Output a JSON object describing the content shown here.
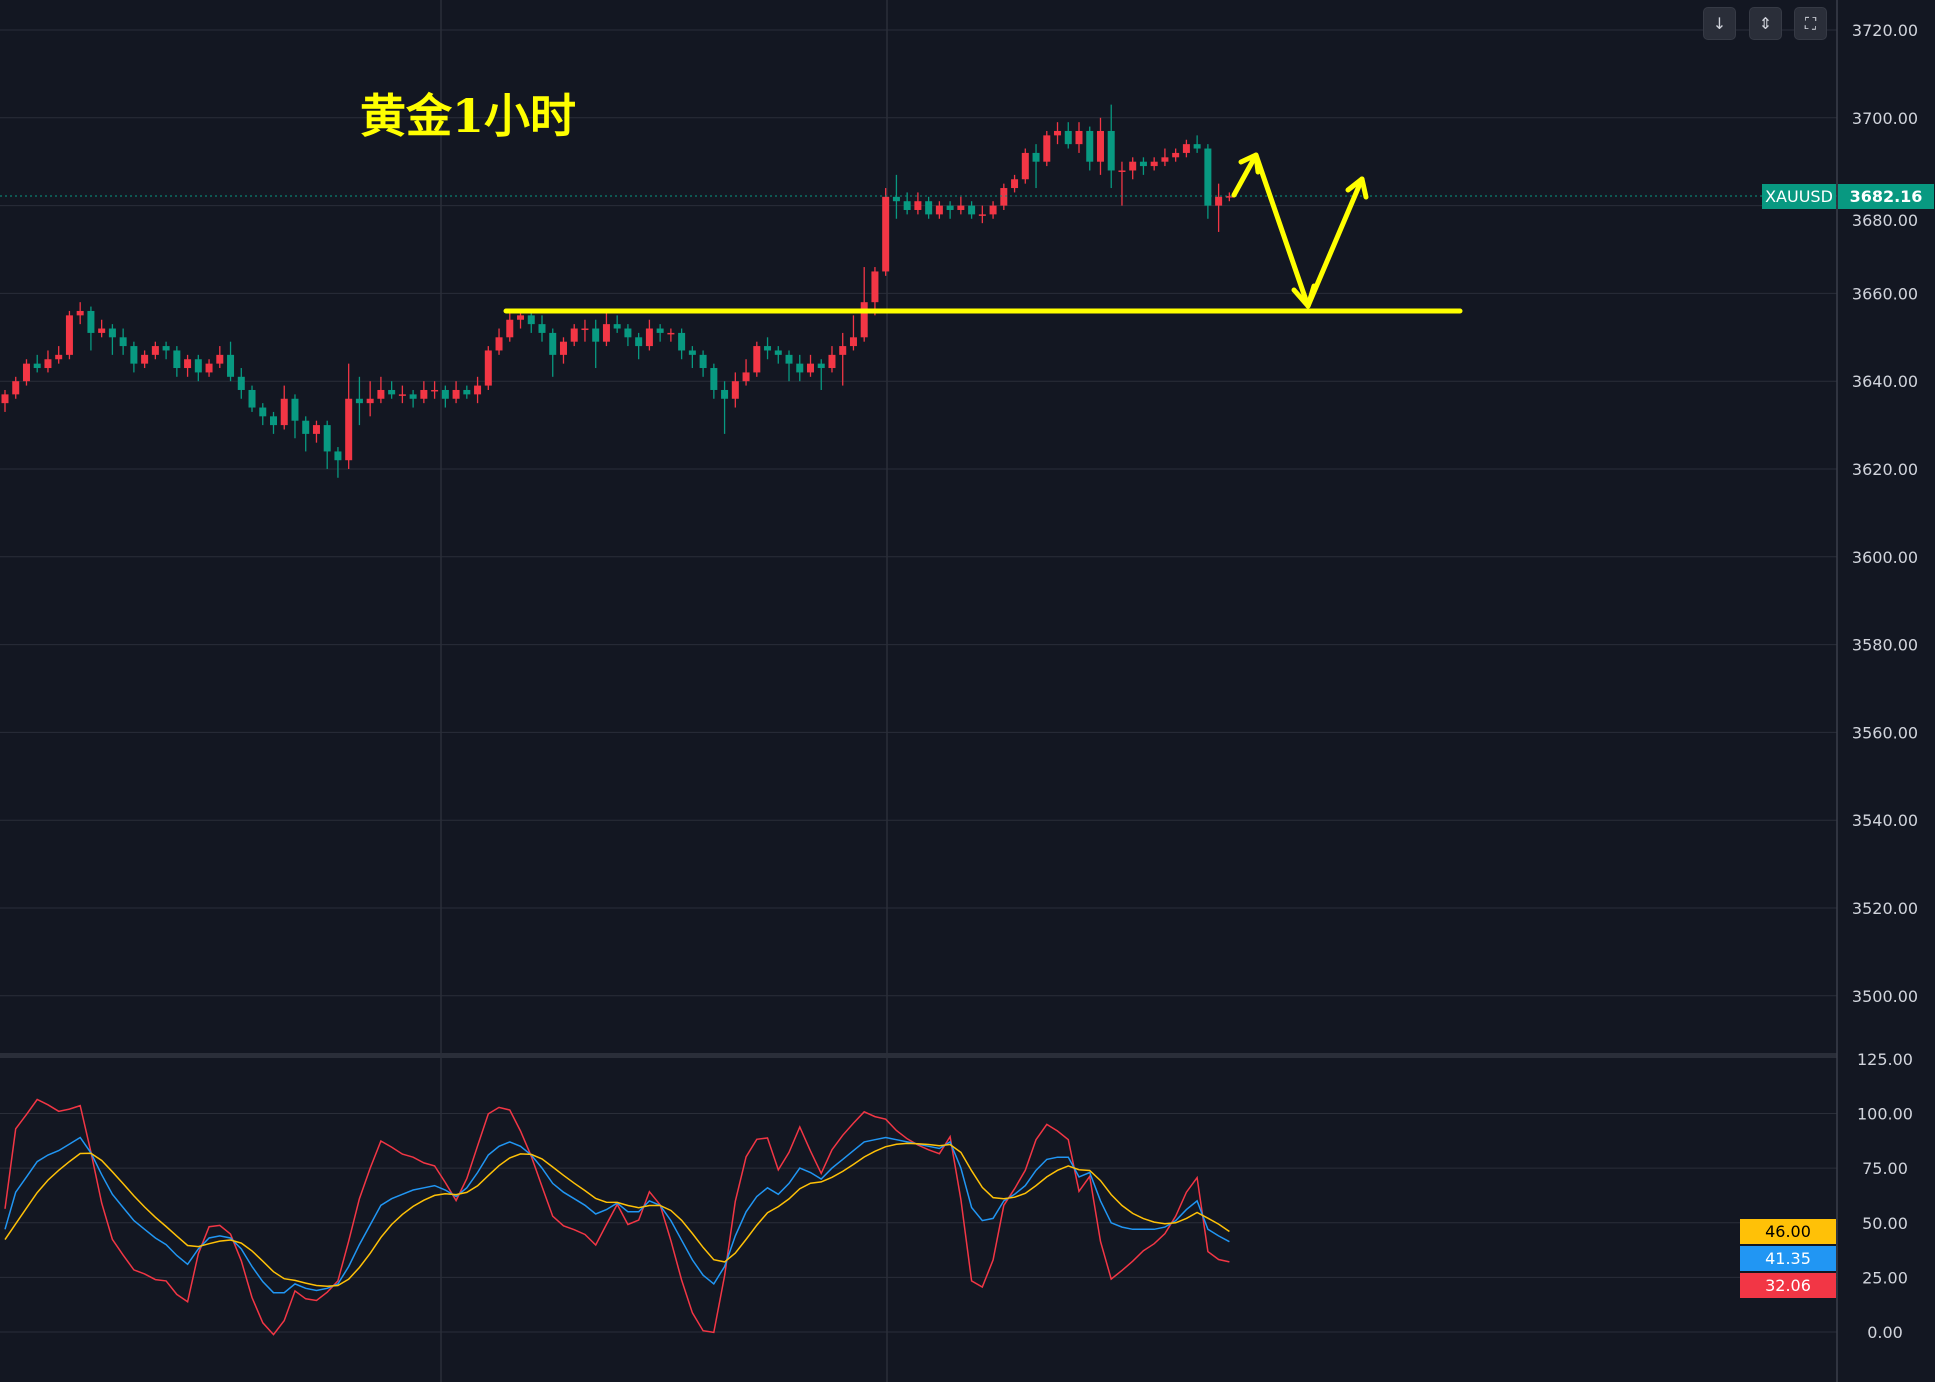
{
  "annotation": {
    "title": "黄金1小时",
    "line_color": "#ffff00",
    "support_level": 3656
  },
  "toolbar": {
    "buttons": [
      {
        "name": "scroll-to-latest",
        "icon": "arrow-down-icon",
        "glyph": "↓"
      },
      {
        "name": "collapse-panes",
        "icon": "collapse-icon",
        "glyph": "⇕"
      },
      {
        "name": "fullscreen",
        "icon": "fullscreen-icon",
        "glyph": "⛶"
      }
    ]
  },
  "symbol": {
    "name": "XAUUSD",
    "last_price": "3682.16",
    "color": "#089981"
  },
  "colors": {
    "up": "#f23645",
    "down": "#089981",
    "background": "#131722",
    "grid": "#2a2e39"
  },
  "chart_data": [
    {
      "type": "candlestick",
      "title": "",
      "ylim": [
        3495,
        3726
      ],
      "yticks": [
        "3720.00",
        "3700.00",
        "3680.00",
        "3660.00",
        "3640.00",
        "3620.00",
        "3600.00",
        "3580.00",
        "3560.00",
        "3540.00",
        "3520.00",
        "3500.00"
      ],
      "grid": true,
      "ohlc": [
        [
          3635,
          3638,
          3633,
          3637
        ],
        [
          3637,
          3641,
          3636,
          3640
        ],
        [
          3640,
          3645,
          3639,
          3644
        ],
        [
          3644,
          3646,
          3642,
          3643
        ],
        [
          3643,
          3647,
          3642,
          3645
        ],
        [
          3645,
          3648,
          3644,
          3646
        ],
        [
          3646,
          3656,
          3645,
          3655
        ],
        [
          3655,
          3658,
          3653,
          3656
        ],
        [
          3656,
          3657,
          3647,
          3651
        ],
        [
          3651,
          3654,
          3650,
          3652
        ],
        [
          3652,
          3653,
          3646,
          3650
        ],
        [
          3650,
          3652,
          3646,
          3648
        ],
        [
          3648,
          3649,
          3642,
          3644
        ],
        [
          3644,
          3647,
          3643,
          3646
        ],
        [
          3646,
          3649,
          3645,
          3648
        ],
        [
          3648,
          3649,
          3645,
          3647
        ],
        [
          3647,
          3648,
          3641,
          3643
        ],
        [
          3643,
          3646,
          3641,
          3645
        ],
        [
          3645,
          3646,
          3640,
          3642
        ],
        [
          3642,
          3645,
          3641,
          3644
        ],
        [
          3644,
          3648,
          3643,
          3646
        ],
        [
          3646,
          3649,
          3640,
          3641
        ],
        [
          3641,
          3643,
          3636,
          3638
        ],
        [
          3638,
          3639,
          3633,
          3634
        ],
        [
          3634,
          3635,
          3630,
          3632
        ],
        [
          3632,
          3633,
          3628,
          3630
        ],
        [
          3630,
          3639,
          3629,
          3636
        ],
        [
          3636,
          3637,
          3627,
          3631
        ],
        [
          3631,
          3632,
          3624,
          3628
        ],
        [
          3628,
          3631,
          3626,
          3630
        ],
        [
          3630,
          3631,
          3620,
          3624
        ],
        [
          3624,
          3625,
          3618,
          3622
        ],
        [
          3622,
          3644,
          3620,
          3636
        ],
        [
          3636,
          3641,
          3630,
          3635
        ],
        [
          3635,
          3640,
          3632,
          3636
        ],
        [
          3636,
          3641,
          3635,
          3638
        ],
        [
          3638,
          3640,
          3636,
          3637
        ],
        [
          3637,
          3639,
          3635,
          3637
        ],
        [
          3637,
          3638,
          3634,
          3636
        ],
        [
          3636,
          3640,
          3635,
          3638
        ],
        [
          3638,
          3640,
          3636,
          3638
        ],
        [
          3638,
          3639,
          3634,
          3636
        ],
        [
          3636,
          3640,
          3635,
          3638
        ],
        [
          3638,
          3639,
          3636,
          3637
        ],
        [
          3637,
          3641,
          3635,
          3639
        ],
        [
          3639,
          3648,
          3638,
          3647
        ],
        [
          3647,
          3652,
          3646,
          3650
        ],
        [
          3650,
          3656,
          3649,
          3654
        ],
        [
          3654,
          3656,
          3652,
          3655
        ],
        [
          3655,
          3656,
          3651,
          3653
        ],
        [
          3653,
          3655,
          3649,
          3651
        ],
        [
          3651,
          3652,
          3641,
          3646
        ],
        [
          3646,
          3650,
          3644,
          3649
        ],
        [
          3649,
          3653,
          3648,
          3652
        ],
        [
          3652,
          3654,
          3649,
          3652
        ],
        [
          3652,
          3654,
          3643,
          3649
        ],
        [
          3649,
          3656,
          3648,
          3653
        ],
        [
          3653,
          3655,
          3651,
          3652
        ],
        [
          3652,
          3653,
          3648,
          3650
        ],
        [
          3650,
          3651,
          3645,
          3648
        ],
        [
          3648,
          3654,
          3647,
          3652
        ],
        [
          3652,
          3653,
          3649,
          3651
        ],
        [
          3651,
          3652,
          3649,
          3651
        ],
        [
          3651,
          3652,
          3645,
          3647
        ],
        [
          3647,
          3648,
          3643,
          3646
        ],
        [
          3646,
          3647,
          3641,
          3643
        ],
        [
          3643,
          3644,
          3636,
          3638
        ],
        [
          3638,
          3640,
          3628,
          3636
        ],
        [
          3636,
          3642,
          3634,
          3640
        ],
        [
          3640,
          3645,
          3639,
          3642
        ],
        [
          3642,
          3649,
          3641,
          3648
        ],
        [
          3648,
          3650,
          3645,
          3647
        ],
        [
          3647,
          3648,
          3644,
          3646
        ],
        [
          3646,
          3647,
          3640,
          3644
        ],
        [
          3644,
          3646,
          3640,
          3642
        ],
        [
          3642,
          3646,
          3641,
          3644
        ],
        [
          3644,
          3645,
          3638,
          3643
        ],
        [
          3643,
          3648,
          3642,
          3646
        ],
        [
          3646,
          3651,
          3639,
          3648
        ],
        [
          3648,
          3655,
          3647,
          3650
        ],
        [
          3650,
          3666,
          3649,
          3658
        ],
        [
          3658,
          3666,
          3655,
          3665
        ],
        [
          3665,
          3684,
          3664,
          3682
        ],
        [
          3682,
          3687,
          3677,
          3681
        ],
        [
          3681,
          3683,
          3678,
          3679
        ],
        [
          3679,
          3683,
          3678,
          3681
        ],
        [
          3681,
          3682,
          3677,
          3678
        ],
        [
          3678,
          3681,
          3677,
          3680
        ],
        [
          3680,
          3681,
          3677,
          3679
        ],
        [
          3679,
          3682,
          3678,
          3680
        ],
        [
          3680,
          3681,
          3677,
          3678
        ],
        [
          3678,
          3680,
          3676,
          3678
        ],
        [
          3678,
          3681,
          3677,
          3680
        ],
        [
          3680,
          3685,
          3679,
          3684
        ],
        [
          3684,
          3687,
          3683,
          3686
        ],
        [
          3686,
          3693,
          3685,
          3692
        ],
        [
          3692,
          3694,
          3684,
          3690
        ],
        [
          3690,
          3697,
          3689,
          3696
        ],
        [
          3696,
          3699,
          3694,
          3697
        ],
        [
          3697,
          3699,
          3693,
          3694
        ],
        [
          3694,
          3699,
          3692,
          3697
        ],
        [
          3697,
          3698,
          3688,
          3690
        ],
        [
          3690,
          3700,
          3687,
          3697
        ],
        [
          3697,
          3703,
          3684,
          3688
        ],
        [
          3688,
          3690,
          3680,
          3688
        ],
        [
          3688,
          3691,
          3686,
          3690
        ],
        [
          3690,
          3691,
          3687,
          3689
        ],
        [
          3689,
          3691,
          3688,
          3690
        ],
        [
          3690,
          3693,
          3689,
          3691
        ],
        [
          3691,
          3693,
          3690,
          3692
        ],
        [
          3692,
          3695,
          3691,
          3694
        ],
        [
          3694,
          3696,
          3692,
          3693
        ],
        [
          3693,
          3694,
          3677,
          3680
        ],
        [
          3680,
          3685,
          3674,
          3682
        ],
        [
          3682,
          3683,
          3681,
          3682.16
        ]
      ]
    },
    {
      "type": "line",
      "title": "",
      "ylim": [
        -10,
        125
      ],
      "yticks": [
        "125.00",
        "100.00",
        "75.00",
        "50.00",
        "25.00",
        "0.00"
      ],
      "grid": true,
      "series": [
        {
          "color": "#f23645",
          "last": "32.06",
          "values": [
            56.4,
            93,
            99.6,
            106.4,
            104,
            101,
            102,
            103.6,
            82.4,
            59,
            42.4,
            35.2,
            28.4,
            26.6,
            24,
            23.4,
            17.2,
            13.8,
            35.8,
            48.2,
            48.8,
            44.8,
            32.6,
            15.8,
            4.2,
            -1.2,
            5.2,
            18.8,
            15.2,
            14.4,
            18.2,
            23.4,
            41.6,
            61,
            75,
            87.4,
            84.6,
            81.4,
            80,
            77.4,
            76,
            68.4,
            60.2,
            70.2,
            85.2,
            99.8,
            102.8,
            101.6,
            92,
            80.4,
            66.6,
            53,
            48.6,
            46.8,
            44.6,
            39.8,
            49.2,
            58.4,
            49.2,
            51.2,
            64.2,
            58.2,
            41.8,
            23.8,
            8.8,
            0.6,
            -0.2,
            25.8,
            59.8,
            80.2,
            88.2,
            88.8,
            74.2,
            82.2,
            93.8,
            82.8,
            72.6,
            83.4,
            90,
            95.6,
            100.8,
            98.6,
            97.4,
            92.2,
            88.4,
            85.6,
            83.4,
            81.6,
            89.4,
            60.6,
            23.4,
            20.6,
            33,
            58,
            65.6,
            74,
            88,
            95,
            92,
            88,
            64.4,
            71.2,
            41.4,
            24.2,
            28.2,
            32.4,
            37.2,
            40.4,
            45,
            53,
            64,
            70.6,
            36.8,
            33.2,
            32.06
          ]
        },
        {
          "color": "#2196f3",
          "last": "41.35",
          "values": [
            47,
            64,
            71,
            78,
            81,
            83,
            86,
            89,
            82,
            72,
            63,
            57,
            51,
            47,
            43,
            40,
            35,
            31,
            38,
            43,
            44,
            43,
            38,
            30,
            23,
            18,
            18,
            22,
            20,
            19,
            20,
            22,
            30,
            40,
            49,
            58,
            61,
            63,
            65,
            66,
            67,
            65,
            62,
            66,
            73,
            81,
            85,
            87,
            85,
            81,
            75,
            68,
            64,
            61,
            58,
            54,
            56,
            59,
            55,
            55,
            60,
            58,
            51,
            42,
            33,
            26,
            22,
            30,
            44,
            55,
            62,
            66,
            63,
            68,
            75,
            73,
            70,
            75,
            79,
            83,
            87,
            88,
            89,
            88,
            87,
            86,
            85,
            84,
            87,
            75,
            57,
            51,
            52,
            60,
            63,
            67,
            74,
            79,
            80,
            80,
            71,
            73,
            60,
            50,
            48,
            47,
            47,
            47,
            48,
            51,
            56,
            60,
            47,
            44,
            41.35
          ]
        },
        {
          "color": "#ffc107",
          "last": "46.00",
          "values": [
            42.3,
            49.5,
            56.7,
            63.8,
            69.5,
            74,
            78,
            81.7,
            81.8,
            78.5,
            73.3,
            67.9,
            62.3,
            57.2,
            52.5,
            48.3,
            43.9,
            39.6,
            39.1,
            40.4,
            41.6,
            42.1,
            40.7,
            37.1,
            32.4,
            27.6,
            24.4,
            23.6,
            22.4,
            21.3,
            20.9,
            21.3,
            24.2,
            29.5,
            36,
            43.3,
            49.2,
            53.8,
            57.5,
            60.3,
            62.5,
            63.3,
            62.9,
            63.9,
            66.9,
            71.6,
            76.1,
            79.7,
            81.5,
            81.3,
            79.2,
            75.5,
            71.7,
            68.1,
            64.7,
            61.1,
            59.4,
            59.3,
            57.9,
            56.9,
            57.9,
            57.9,
            55.6,
            51.1,
            45.1,
            38.7,
            33.1,
            32.1,
            36.1,
            42.4,
            48.9,
            54.6,
            57.4,
            60.9,
            65.6,
            68.1,
            68.7,
            70.8,
            73.5,
            76.7,
            80.1,
            82.7,
            84.8,
            85.9,
            86.3,
            86.2,
            85.8,
            85.2,
            85.8,
            82.2,
            73.8,
            66.2,
            61.5,
            61,
            61.7,
            63.5,
            67,
            71,
            74,
            76,
            74.3,
            73.9,
            69.3,
            62.9,
            57.9,
            54.3,
            51.9,
            50.3,
            49.5,
            50,
            52,
            54.7,
            52.1,
            49.4,
            46.0
          ]
        }
      ]
    }
  ]
}
